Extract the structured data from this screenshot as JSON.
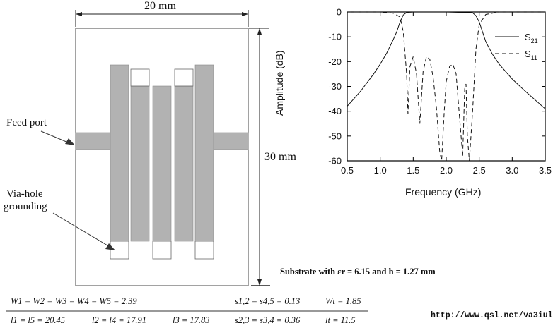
{
  "layout_diagram": {
    "width_label": "20 mm",
    "height_label": "30 mm",
    "feed_port_label": "Feed port",
    "via_label_line1": "Via-hole",
    "via_label_line2": "grounding",
    "substrate_note": "Substrate with εr = 6.15 and h = 1.27 mm"
  },
  "chart_data": {
    "type": "line",
    "xlabel": "Frequency (GHz)",
    "ylabel": "Amplitude (dB)",
    "xlim": [
      0.5,
      3.5
    ],
    "ylim": [
      -60,
      0
    ],
    "xticks": [
      "0.5",
      "1.0",
      "1.5",
      "2.0",
      "2.5",
      "3.0",
      "3.5"
    ],
    "yticks": [
      "0",
      "-10",
      "-20",
      "-30",
      "-40",
      "-50",
      "-60"
    ],
    "legend_position": "top-right",
    "series": [
      {
        "name": "S21",
        "style": "solid",
        "x": [
          0.5,
          0.7,
          0.9,
          1.0,
          1.1,
          1.2,
          1.25,
          1.3,
          1.35,
          1.4,
          1.5,
          2.0,
          2.4,
          2.45,
          2.5,
          2.55,
          2.6,
          2.7,
          2.8,
          3.0,
          3.2,
          3.5
        ],
        "y": [
          -38,
          -32,
          -25,
          -21,
          -16.5,
          -11,
          -8,
          -4,
          -1.2,
          -0.2,
          0,
          0,
          -0.3,
          -1.5,
          -4,
          -8,
          -12,
          -17,
          -21,
          -27,
          -32,
          -39
        ]
      },
      {
        "name": "S11",
        "style": "dashed",
        "x": [
          0.5,
          1.0,
          1.2,
          1.3,
          1.35,
          1.4,
          1.42,
          1.45,
          1.5,
          1.55,
          1.6,
          1.65,
          1.7,
          1.75,
          1.8,
          1.85,
          1.9,
          1.93,
          1.97,
          2.0,
          2.05,
          2.1,
          2.15,
          2.2,
          2.25,
          2.28,
          2.3,
          2.32,
          2.35,
          2.4,
          2.45,
          2.5,
          2.6,
          2.8,
          3.5
        ],
        "y": [
          0,
          0,
          -0.5,
          -2,
          -8,
          -25,
          -41,
          -22,
          -18,
          -25,
          -45,
          -24,
          -18,
          -19,
          -26,
          -38,
          -56,
          -60,
          -40,
          -28,
          -22,
          -21,
          -25,
          -42,
          -58,
          -31,
          -29,
          -50,
          -60,
          -40,
          -15,
          -5,
          -1,
          0,
          0
        ]
      }
    ]
  },
  "equations": {
    "row1_left": "W1 = W2 = W3 = W4 = W5 = 2.39",
    "row1_mid": "s1,2 = s4,5 = 0.13",
    "row1_right": "Wt = 1.85",
    "row2_c1": "l1 = l5 = 20.45",
    "row2_c2": "l2 = l4 = 17.91",
    "row2_c3": "l3 = 17.83",
    "row2_c4": "s2,3 = s3,4 = 0.36",
    "row2_c5": "lt = 11.5"
  },
  "url": "http://www.qsl.net/va3iul/"
}
